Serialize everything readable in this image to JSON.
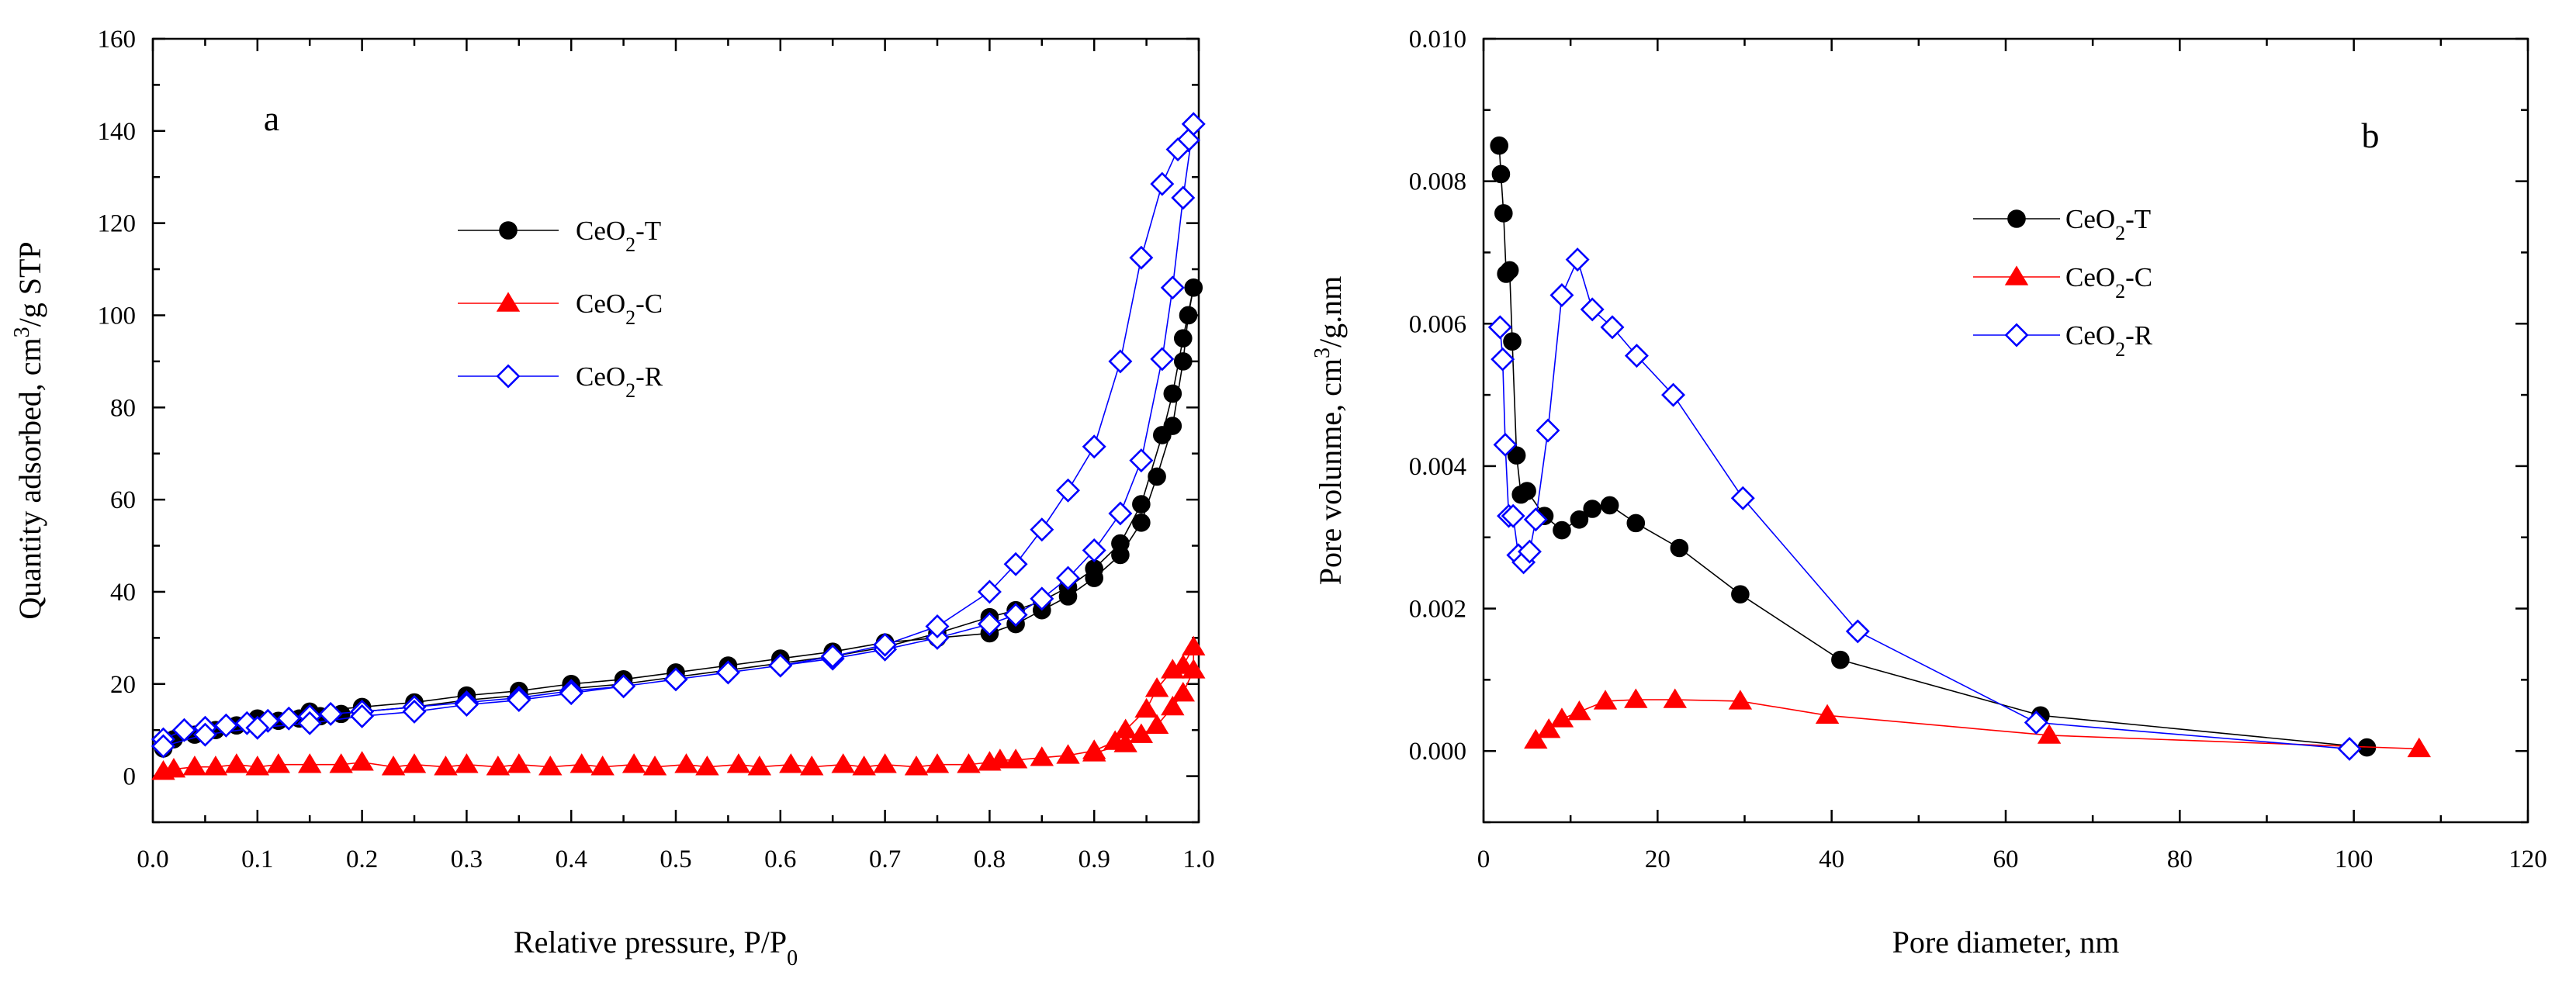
{
  "colors": {
    "CeO2-T": "#000000",
    "CeO2-C": "#ff0000",
    "CeO2-R": "#0000ff"
  },
  "chart_data": [
    {
      "id": "a",
      "type": "scatter",
      "panel_label": "a",
      "xlabel": "Relative pressure, P/P",
      "xlabel_sub": "0",
      "ylabel": "Quantity adsorbed, cm",
      "ylabel_sup": "3",
      "ylabel_tail": "/g STP",
      "xlim": [
        0.0,
        1.0
      ],
      "ylim": [
        -10,
        160
      ],
      "xticks": [
        0.0,
        0.1,
        0.2,
        0.3,
        0.4,
        0.5,
        0.6,
        0.7,
        0.8,
        0.9,
        1.0
      ],
      "xtick_labels": [
        "0.0",
        "0.1",
        "0.2",
        "0.3",
        "0.4",
        "0.5",
        "0.6",
        "0.7",
        "0.8",
        "0.9",
        "1.0"
      ],
      "yticks": [
        0,
        20,
        40,
        60,
        80,
        100,
        120,
        140,
        160
      ],
      "ytick_labels": [
        "0",
        "20",
        "40",
        "60",
        "80",
        "100",
        "120",
        "140",
        "160"
      ],
      "legend_position": "upper-left",
      "series": [
        {
          "name": "CeO2-T",
          "label": "CeO",
          "label_sub": "2",
          "label_tail": "-T",
          "marker": "circle",
          "color_key": "CeO2-T",
          "x": [
            0.01,
            0.02,
            0.04,
            0.06,
            0.08,
            0.1,
            0.12,
            0.14,
            0.16,
            0.18,
            0.2,
            0.25,
            0.3,
            0.35,
            0.4,
            0.45,
            0.5,
            0.55,
            0.6,
            0.65,
            0.7,
            0.75,
            0.8,
            0.825,
            0.85,
            0.875,
            0.9,
            0.925,
            0.945,
            0.965,
            0.975,
            0.985,
            0.995,
            0.99,
            0.985,
            0.975,
            0.96,
            0.945,
            0.925,
            0.9,
            0.875,
            0.85,
            0.825,
            0.8,
            0.75,
            0.7,
            0.65,
            0.6,
            0.55,
            0.5,
            0.45,
            0.4,
            0.35,
            0.3,
            0.25,
            0.2,
            0.15,
            0.1,
            0.05,
            0.01
          ],
          "y": [
            6,
            8,
            9,
            10,
            11,
            11.5,
            12,
            12.5,
            13,
            13.5,
            14,
            15,
            16.5,
            17.5,
            19,
            20,
            21.5,
            23,
            24.5,
            26,
            28,
            31,
            34.5,
            36,
            38,
            41,
            45,
            50.5,
            59,
            74,
            83,
            95,
            106,
            100,
            90,
            76,
            65,
            55,
            48,
            43,
            39,
            36,
            33,
            31,
            30,
            29,
            27,
            25.5,
            24,
            22.5,
            21,
            20,
            18.5,
            17.5,
            16,
            15,
            14,
            12.5,
            10,
            7
          ]
        },
        {
          "name": "CeO2-C",
          "label": "CeO",
          "label_sub": "2",
          "label_tail": "-C",
          "marker": "triangle",
          "color_key": "CeO2-C",
          "x": [
            0.01,
            0.02,
            0.04,
            0.06,
            0.08,
            0.1,
            0.12,
            0.15,
            0.18,
            0.2,
            0.23,
            0.25,
            0.28,
            0.3,
            0.33,
            0.35,
            0.38,
            0.41,
            0.43,
            0.46,
            0.48,
            0.51,
            0.53,
            0.56,
            0.58,
            0.61,
            0.63,
            0.66,
            0.68,
            0.7,
            0.73,
            0.75,
            0.78,
            0.8,
            0.81,
            0.825,
            0.85,
            0.875,
            0.9,
            0.92,
            0.93,
            0.95,
            0.96,
            0.975,
            0.985,
            0.995,
            0.995,
            0.985,
            0.975,
            0.96,
            0.945,
            0.93,
            0.9
          ],
          "y": [
            1,
            1.5,
            2,
            2,
            2.5,
            2,
            2.5,
            2.5,
            2.5,
            3,
            2,
            2.5,
            2,
            2.5,
            2,
            2.5,
            2,
            2.5,
            2,
            2.5,
            2,
            2.5,
            2,
            2.5,
            2,
            2.5,
            2,
            2.5,
            2,
            2.5,
            2,
            2.5,
            2.5,
            3,
            3.5,
            3.5,
            4,
            4.5,
            5.5,
            7.5,
            10,
            14.5,
            19,
            23,
            24,
            28,
            23,
            18,
            15,
            11,
            9,
            7,
            5
          ]
        },
        {
          "name": "CeO2-R",
          "label": "CeO",
          "label_sub": "2",
          "label_tail": "-R",
          "marker": "diamond",
          "color_key": "CeO2-R",
          "x": [
            0.01,
            0.03,
            0.05,
            0.07,
            0.09,
            0.11,
            0.13,
            0.15,
            0.17,
            0.2,
            0.25,
            0.3,
            0.35,
            0.4,
            0.45,
            0.5,
            0.55,
            0.6,
            0.65,
            0.7,
            0.75,
            0.8,
            0.825,
            0.85,
            0.875,
            0.9,
            0.925,
            0.945,
            0.965,
            0.975,
            0.985,
            0.995,
            0.99,
            0.98,
            0.965,
            0.945,
            0.925,
            0.9,
            0.875,
            0.85,
            0.825,
            0.8,
            0.75,
            0.7,
            0.65,
            0.6,
            0.55,
            0.5,
            0.45,
            0.4,
            0.35,
            0.3,
            0.25,
            0.2,
            0.15,
            0.1,
            0.05,
            0.01
          ],
          "y": [
            8,
            10,
            10.5,
            11,
            11.5,
            12,
            12.5,
            13,
            13.5,
            14,
            15,
            16,
            17,
            18.5,
            19.5,
            21,
            22.5,
            24,
            25.5,
            27.5,
            30,
            33,
            35,
            38.5,
            43,
            49,
            57,
            68.5,
            90.5,
            106,
            125.5,
            141.5,
            138,
            136,
            128.5,
            112.5,
            90,
            71.5,
            62,
            53.5,
            46,
            40,
            32.5,
            28.5,
            26,
            24,
            22.5,
            21,
            19.5,
            18,
            16.5,
            15.5,
            14,
            13,
            11.5,
            10.5,
            9,
            6.5
          ]
        }
      ]
    },
    {
      "id": "b",
      "type": "scatter",
      "panel_label": "b",
      "xlabel": "Pore diameter, nm",
      "ylabel": "Pore volunme, cm",
      "ylabel_sup": "3",
      "ylabel_tail": "/g.nm",
      "xlim": [
        0,
        120
      ],
      "ylim": [
        -0.001,
        0.01
      ],
      "xticks": [
        0,
        20,
        40,
        60,
        80,
        100,
        120
      ],
      "xtick_labels": [
        "0",
        "20",
        "40",
        "60",
        "80",
        "100",
        "120"
      ],
      "yticks": [
        0.0,
        0.002,
        0.004,
        0.006,
        0.008,
        0.01
      ],
      "ytick_labels": [
        "0.000",
        "0.002",
        "0.004",
        "0.006",
        "0.008",
        "0.010"
      ],
      "legend_position": "upper-right",
      "series": [
        {
          "name": "CeO2-T",
          "label": "CeO",
          "label_sub": "2",
          "label_tail": "-T",
          "marker": "circle",
          "color_key": "CeO2-T",
          "x": [
            1.8,
            2.0,
            2.3,
            2.6,
            3.0,
            3.3,
            3.8,
            4.3,
            5.0,
            7.0,
            9.0,
            11.0,
            12.5,
            14.5,
            17.5,
            22.5,
            29.5,
            41.0,
            64.0,
            101.5
          ],
          "y": [
            0.0085,
            0.0081,
            0.00755,
            0.0067,
            0.00675,
            0.00575,
            0.00415,
            0.0036,
            0.00365,
            0.0033,
            0.0031,
            0.00325,
            0.0034,
            0.00345,
            0.0032,
            0.00285,
            0.0022,
            0.00128,
            0.0005,
            5e-05
          ]
        },
        {
          "name": "CeO2-C",
          "label": "CeO",
          "label_sub": "2",
          "label_tail": "-C",
          "marker": "triangle",
          "color_key": "CeO2-C",
          "x": [
            6.0,
            7.5,
            9.0,
            11.0,
            14.0,
            17.5,
            22.0,
            29.5,
            39.5,
            65.0,
            107.5
          ],
          "y": [
            0.00015,
            0.0003,
            0.00045,
            0.00055,
            0.0007,
            0.00072,
            0.00072,
            0.0007,
            0.0005,
            0.00022,
            3e-05
          ]
        },
        {
          "name": "CeO2-R",
          "label": "CeO",
          "label_sub": "2",
          "label_tail": "-R",
          "marker": "diamond",
          "color_key": "CeO2-R",
          "x": [
            1.9,
            2.2,
            2.5,
            2.9,
            3.4,
            4.0,
            4.6,
            5.3,
            6.0,
            7.4,
            9.0,
            10.8,
            12.5,
            14.8,
            17.6,
            21.8,
            29.8,
            43.0,
            63.5,
            99.5
          ],
          "y": [
            0.00595,
            0.0055,
            0.0043,
            0.0033,
            0.0033,
            0.00275,
            0.00265,
            0.0028,
            0.00325,
            0.0045,
            0.0064,
            0.0069,
            0.0062,
            0.00595,
            0.00555,
            0.005,
            0.00355,
            0.00168,
            0.0004,
            3e-05
          ]
        }
      ]
    }
  ]
}
